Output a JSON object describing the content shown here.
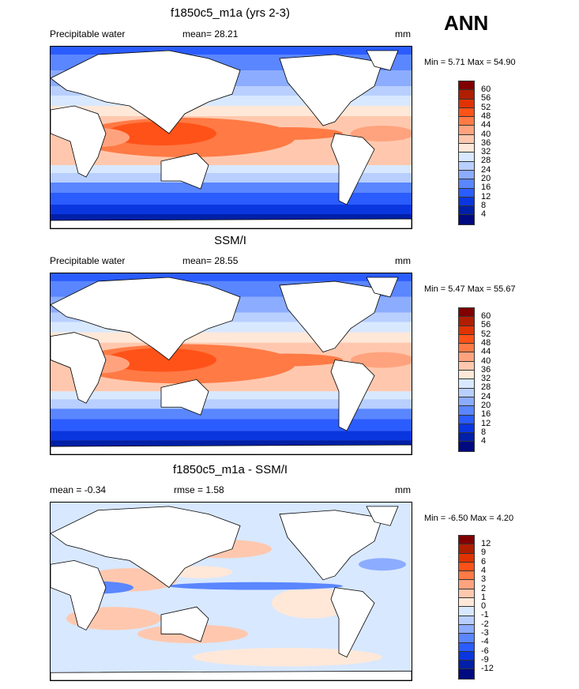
{
  "season": "ANN",
  "panels": [
    {
      "title": "f1850c5_m1a (yrs 2-3)",
      "left": "Precipitable water",
      "mean": "mean=  28.21",
      "units": "mm",
      "minmax": "Min =  5.71 Max =  54.90",
      "type": "abs"
    },
    {
      "title": "SSM/I",
      "left": "Precipitable water",
      "mean": "mean=  28.55",
      "units": "mm",
      "minmax": "Min =  5.47 Max =  55.67",
      "type": "abs"
    },
    {
      "title": "f1850c5_m1a - SSM/I",
      "left": "mean =  -0.34",
      "mean": "rmse =   1.58",
      "units": "mm",
      "minmax": "Min =  -6.50 Max =   4.20",
      "type": "diff"
    }
  ],
  "colorbar_abs": {
    "labels": [
      "60",
      "56",
      "52",
      "48",
      "44",
      "40",
      "36",
      "32",
      "28",
      "24",
      "20",
      "16",
      "12",
      "8",
      "4"
    ]
  },
  "colorbar_diff": {
    "labels": [
      "12",
      "9",
      "6",
      "4",
      "3",
      "2",
      "1",
      "0",
      "-1",
      "-2",
      "-3",
      "-4",
      "-6",
      "-9",
      "-12"
    ]
  },
  "colors": [
    "#800000",
    "#b01e00",
    "#e03300",
    "#ff5218",
    "#ff7a45",
    "#ffa37e",
    "#ffc8ae",
    "#ffe8d8",
    "#d8e8ff",
    "#b8cfff",
    "#8cacff",
    "#5a86ff",
    "#2b5cff",
    "#0a36e0",
    "#0020a8",
    "#000a80"
  ]
}
